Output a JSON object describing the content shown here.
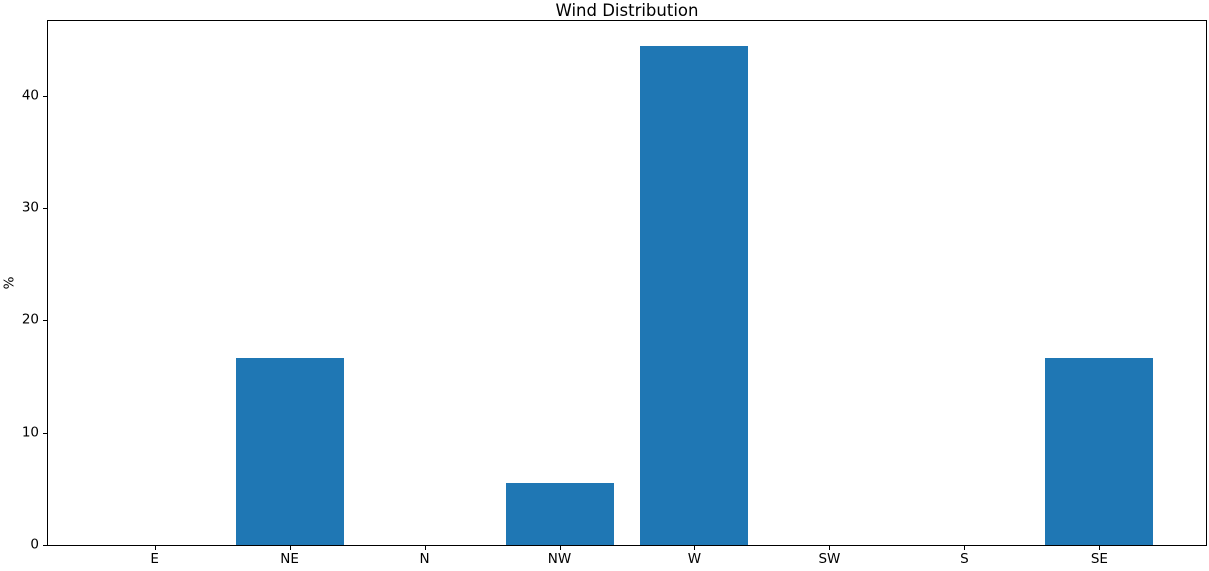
{
  "figure": {
    "background": "#ffffff",
    "text_color": "#000000",
    "spine_color": "#000000"
  },
  "chart_data": {
    "type": "bar",
    "title": "Wind Distribution",
    "categories": [
      "E",
      "NE",
      "N",
      "NW",
      "W",
      "SW",
      "S",
      "SE"
    ],
    "values": [
      0,
      16.67,
      0,
      5.56,
      44.44,
      0,
      0,
      16.67
    ],
    "xlabel": "",
    "ylabel": "%",
    "yticks": [
      0,
      10,
      20,
      30,
      40
    ],
    "ylim": [
      0,
      46.67
    ],
    "xlim": [
      -0.79,
      7.79
    ],
    "bar_width": 0.8,
    "bar_color": "#1f77b4",
    "grid": false,
    "legend": null
  }
}
